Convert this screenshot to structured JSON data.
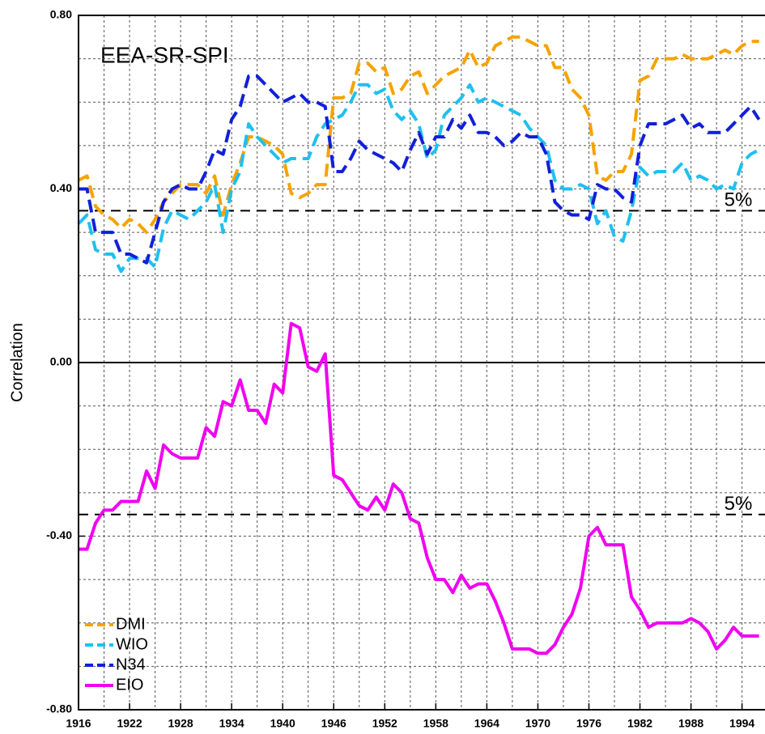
{
  "chart_data": {
    "type": "line",
    "title": "EEA-SR-SPI",
    "y_label": "Correlation",
    "x": [
      1916,
      1917,
      1918,
      1919,
      1920,
      1921,
      1922,
      1923,
      1924,
      1925,
      1926,
      1927,
      1928,
      1929,
      1930,
      1931,
      1932,
      1933,
      1934,
      1935,
      1936,
      1937,
      1938,
      1939,
      1940,
      1941,
      1942,
      1943,
      1944,
      1945,
      1946,
      1947,
      1948,
      1949,
      1950,
      1951,
      1952,
      1953,
      1954,
      1955,
      1956,
      1957,
      1958,
      1959,
      1960,
      1961,
      1962,
      1963,
      1964,
      1965,
      1966,
      1967,
      1968,
      1969,
      1970,
      1971,
      1972,
      1973,
      1974,
      1975,
      1976,
      1977,
      1978,
      1979,
      1980,
      1981,
      1982,
      1983,
      1984,
      1985,
      1986,
      1987,
      1988,
      1989,
      1990,
      1991,
      1992,
      1993,
      1994,
      1995,
      1996
    ],
    "series": [
      {
        "name": "DMI",
        "color": "#f5a300",
        "dashed": true,
        "values": [
          0.42,
          0.43,
          0.36,
          0.34,
          0.33,
          0.31,
          0.33,
          0.32,
          0.3,
          0.33,
          0.37,
          0.39,
          0.41,
          0.41,
          0.41,
          0.39,
          0.43,
          0.34,
          0.41,
          0.46,
          0.52,
          0.52,
          0.51,
          0.5,
          0.48,
          0.39,
          0.38,
          0.39,
          0.41,
          0.41,
          0.61,
          0.61,
          0.62,
          0.69,
          0.69,
          0.67,
          0.68,
          0.62,
          0.63,
          0.66,
          0.67,
          0.62,
          0.64,
          0.66,
          0.67,
          0.68,
          0.72,
          0.68,
          0.69,
          0.73,
          0.74,
          0.75,
          0.75,
          0.74,
          0.73,
          0.73,
          0.68,
          0.68,
          0.63,
          0.61,
          0.57,
          0.43,
          0.42,
          0.44,
          0.44,
          0.48,
          0.65,
          0.66,
          0.7,
          0.7,
          0.7,
          0.71,
          0.7,
          0.7,
          0.7,
          0.71,
          0.72,
          0.71,
          0.73,
          0.74,
          0.74
        ]
      },
      {
        "name": "WIO",
        "color": "#1ec0f0",
        "dashed": true,
        "values": [
          0.32,
          0.34,
          0.26,
          0.25,
          0.25,
          0.21,
          0.24,
          0.24,
          0.24,
          0.22,
          0.31,
          0.35,
          0.34,
          0.33,
          0.35,
          0.37,
          0.41,
          0.3,
          0.4,
          0.44,
          0.55,
          0.52,
          0.5,
          0.48,
          0.46,
          0.47,
          0.47,
          0.47,
          0.52,
          0.55,
          0.56,
          0.57,
          0.6,
          0.64,
          0.64,
          0.62,
          0.63,
          0.58,
          0.56,
          0.58,
          0.55,
          0.47,
          0.49,
          0.57,
          0.59,
          0.61,
          0.64,
          0.6,
          0.61,
          0.6,
          0.59,
          0.58,
          0.57,
          0.54,
          0.52,
          0.5,
          0.42,
          0.4,
          0.4,
          0.41,
          0.4,
          0.32,
          0.35,
          0.29,
          0.28,
          0.35,
          0.45,
          0.43,
          0.44,
          0.44,
          0.44,
          0.46,
          0.42,
          0.43,
          0.42,
          0.4,
          0.41,
          0.4,
          0.46,
          0.48,
          0.49
        ]
      },
      {
        "name": "N34",
        "color": "#1020d8",
        "dashed": true,
        "values": [
          0.4,
          0.4,
          0.3,
          0.3,
          0.3,
          0.25,
          0.25,
          0.24,
          0.23,
          0.3,
          0.37,
          0.4,
          0.41,
          0.4,
          0.4,
          0.44,
          0.49,
          0.48,
          0.56,
          0.59,
          0.66,
          0.66,
          0.64,
          0.62,
          0.6,
          0.61,
          0.62,
          0.6,
          0.6,
          0.59,
          0.44,
          0.44,
          0.47,
          0.51,
          0.49,
          0.48,
          0.47,
          0.46,
          0.44,
          0.49,
          0.53,
          0.48,
          0.52,
          0.52,
          0.56,
          0.54,
          0.57,
          0.53,
          0.53,
          0.52,
          0.5,
          0.51,
          0.53,
          0.52,
          0.52,
          0.48,
          0.37,
          0.35,
          0.34,
          0.34,
          0.33,
          0.41,
          0.4,
          0.4,
          0.38,
          0.37,
          0.5,
          0.55,
          0.55,
          0.55,
          0.56,
          0.57,
          0.54,
          0.55,
          0.53,
          0.53,
          0.53,
          0.55,
          0.57,
          0.59,
          0.56
        ]
      },
      {
        "name": "EIO",
        "color": "#f000f0",
        "dashed": false,
        "values": [
          -0.43,
          -0.43,
          -0.37,
          -0.34,
          -0.34,
          -0.32,
          -0.32,
          -0.32,
          -0.25,
          -0.29,
          -0.19,
          -0.21,
          -0.22,
          -0.22,
          -0.22,
          -0.15,
          -0.17,
          -0.09,
          -0.1,
          -0.04,
          -0.11,
          -0.11,
          -0.14,
          -0.05,
          -0.07,
          0.09,
          0.08,
          -0.01,
          -0.02,
          0.02,
          -0.26,
          -0.27,
          -0.3,
          -0.33,
          -0.34,
          -0.31,
          -0.34,
          -0.28,
          -0.3,
          -0.36,
          -0.37,
          -0.45,
          -0.5,
          -0.5,
          -0.53,
          -0.49,
          -0.52,
          -0.51,
          -0.51,
          -0.55,
          -0.6,
          -0.66,
          -0.66,
          -0.66,
          -0.67,
          -0.67,
          -0.65,
          -0.61,
          -0.58,
          -0.52,
          -0.4,
          -0.38,
          -0.42,
          -0.42,
          -0.42,
          -0.54,
          -0.57,
          -0.61,
          -0.6,
          -0.6,
          -0.6,
          -0.6,
          -0.59,
          -0.6,
          -0.62,
          -0.66,
          -0.64,
          -0.61,
          -0.63,
          -0.63,
          -0.63
        ]
      }
    ],
    "xlim": [
      1916,
      1996.7
    ],
    "xticks": [
      1916,
      1922,
      1928,
      1934,
      1940,
      1946,
      1952,
      1958,
      1964,
      1970,
      1976,
      1982,
      1988,
      1994
    ],
    "xgrid": [
      1919,
      1925,
      1931,
      1937,
      1943,
      1949,
      1955,
      1961,
      1967,
      1973,
      1979,
      1985,
      1991
    ],
    "ylim": [
      -0.8,
      0.8
    ],
    "yticks": [
      {
        "value": -0.8,
        "label": "-0.80"
      },
      {
        "value": -0.4,
        "label": "-0.40"
      },
      {
        "value": 0,
        "label": "0.00"
      },
      {
        "value": 0.4,
        "label": "0.40"
      },
      {
        "value": 0.8,
        "label": "0.80"
      }
    ],
    "ygrid": [
      -0.7,
      -0.6,
      -0.5,
      -0.3,
      -0.2,
      -0.1,
      0.1,
      0.2,
      0.3,
      0.5,
      0.6,
      0.7
    ],
    "reference_lines": [
      {
        "value": 0.35,
        "label": "5%"
      },
      {
        "value": -0.35,
        "label": "5%"
      }
    ],
    "grid": true,
    "legend": "lower left"
  }
}
